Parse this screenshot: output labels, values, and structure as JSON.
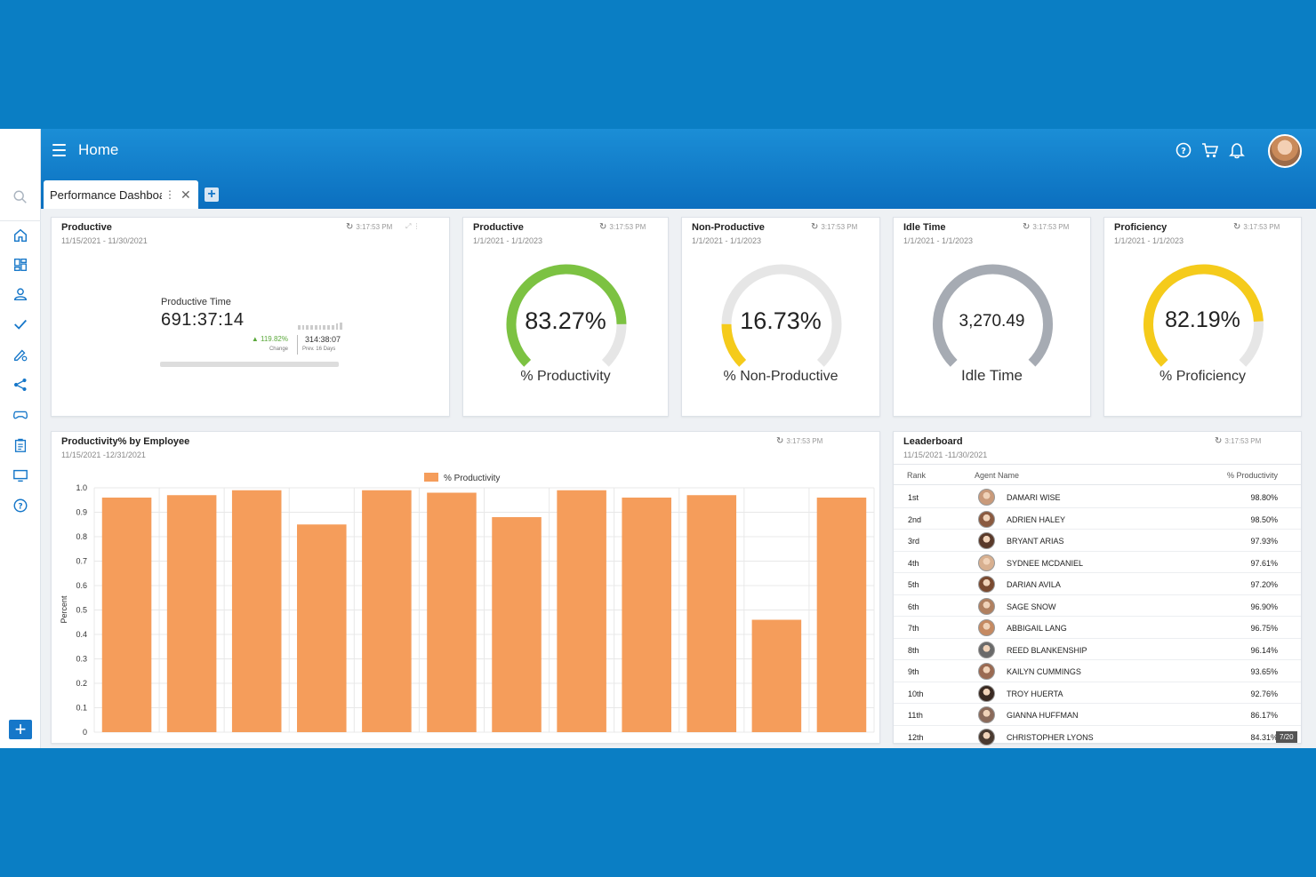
{
  "header": {
    "title": "Home"
  },
  "tabs": [
    {
      "label": "Performance Dashboard"
    }
  ],
  "icons": {
    "sidebar": [
      "search-icon",
      "home-icon",
      "dashboard-icon",
      "user-icon",
      "check-icon",
      "edit-icon",
      "share-icon",
      "gamepad-icon",
      "clipboard-icon",
      "monitor-icon",
      "help-icon"
    ],
    "header": [
      "help-icon",
      "cart-icon",
      "bell-icon"
    ]
  },
  "cards": {
    "productive_time": {
      "title": "Productive",
      "date": "11/15/2021 - 11/30/2021",
      "time": "3:17:53 PM",
      "label": "Productive Time",
      "value": "691:37:14",
      "change": "▲ 119.82%",
      "change_label": "Change",
      "prev": "314:38:07",
      "prev_label": "Prev. 16 Days"
    },
    "productive": {
      "title": "Productive",
      "date": "1/1/2021 - 1/1/2023",
      "time": "3:17:53 PM",
      "value": "83.27%",
      "label": "% Productivity",
      "fraction": 0.8327,
      "color": "#7cc242"
    },
    "non_productive": {
      "title": "Non-Productive",
      "date": "1/1/2021 - 1/1/2023",
      "time": "3:17:53 PM",
      "value": "16.73%",
      "label": "% Non-Productive",
      "fraction": 0.1673,
      "color": "#f5cb1b"
    },
    "idle_time": {
      "title": "Idle Time",
      "date": "1/1/2021 - 1/1/2023",
      "time": "3:17:53 PM",
      "value": "3,270.49",
      "label": "Idle Time",
      "fraction": 1.0,
      "color": "#a6abb3"
    },
    "proficiency": {
      "title": "Proficiency",
      "date": "1/1/2021 - 1/1/2023",
      "time": "3:17:53 PM",
      "value": "82.19%",
      "label": "% Proficiency",
      "fraction": 0.8219,
      "color": "#f5cb1b"
    }
  },
  "chart_panel": {
    "title": "Productivity% by Employee",
    "date": "11/15/2021 -12/31/2021",
    "time": "3:17:53 PM"
  },
  "chart_data": {
    "type": "bar",
    "legend": "% Productivity",
    "ylabel": "Percent",
    "ylim": [
      0,
      1.0
    ],
    "yticks": [
      "0",
      "0.1",
      "0.2",
      "0.3",
      "0.4",
      "0.5",
      "0.6",
      "0.7",
      "0.8",
      "0.9",
      "1.0"
    ],
    "values": [
      0.96,
      0.97,
      0.99,
      0.85,
      0.99,
      0.98,
      0.88,
      0.99,
      0.96,
      0.97,
      0.46,
      0.96
    ],
    "color": "#f59d5b",
    "grid": true,
    "legend_position": "top"
  },
  "leaderboard": {
    "title": "Leaderboard",
    "date": "11/15/2021 -11/30/2021",
    "time": "3:17:53 PM",
    "columns": [
      "Rank",
      "Agent Name",
      "% Productivity"
    ],
    "rows": [
      {
        "rank": "1st",
        "name": "DAMARI WISE",
        "pct": "98.80%"
      },
      {
        "rank": "2nd",
        "name": "ADRIEN HALEY",
        "pct": "98.50%"
      },
      {
        "rank": "3rd",
        "name": "BRYANT ARIAS",
        "pct": "97.93%"
      },
      {
        "rank": "4th",
        "name": "SYDNEE MCDANIEL",
        "pct": "97.61%"
      },
      {
        "rank": "5th",
        "name": "DARIAN AVILA",
        "pct": "97.20%"
      },
      {
        "rank": "6th",
        "name": "SAGE SNOW",
        "pct": "96.90%"
      },
      {
        "rank": "7th",
        "name": "ABBIGAIL LANG",
        "pct": "96.75%"
      },
      {
        "rank": "8th",
        "name": "REED BLANKENSHIP",
        "pct": "96.14%"
      },
      {
        "rank": "9th",
        "name": "KAILYN CUMMINGS",
        "pct": "93.65%"
      },
      {
        "rank": "10th",
        "name": "TROY HUERTA",
        "pct": "92.76%"
      },
      {
        "rank": "11th",
        "name": "GIANNA HUFFMAN",
        "pct": "86.17%"
      },
      {
        "rank": "12th",
        "name": "CHRISTOPHER LYONS",
        "pct": "84.31%"
      }
    ],
    "page": "7/20"
  }
}
